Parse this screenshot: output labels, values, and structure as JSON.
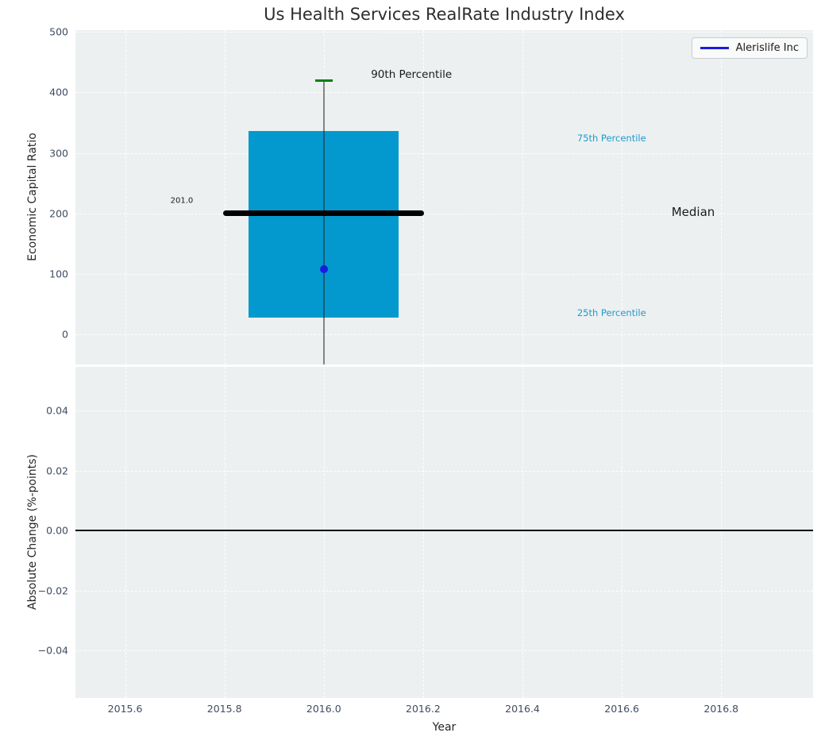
{
  "title": "Us Health Services RealRate Industry Index",
  "legend": {
    "label": "Alerislife Inc"
  },
  "colors": {
    "axes_background": "#ecf0f1",
    "grid": "#ffffff",
    "box_fill": "#0399cf",
    "median_line": "#000000",
    "whisker": "#282828",
    "p90_cap": "#008000",
    "company_point": "#1b1be0",
    "tick_label": "#3f4c63",
    "axis_label": "#262626",
    "percentile_label": "#1f9bcd",
    "zero_line": "#000000"
  },
  "chart_data": [
    {
      "type": "boxplot",
      "title": "Us Health Services RealRate Industry Index",
      "ylabel": "Economic Capital Ratio",
      "xlim": [
        2015.5,
        2016.985
      ],
      "ylim": [
        -49.5,
        503
      ],
      "grid": true,
      "legend_position": "upper right",
      "xticks": [
        2015.6,
        2015.8,
        2016.0,
        2016.2,
        2016.4,
        2016.6,
        2016.8
      ],
      "yticks": [
        0,
        100,
        200,
        300,
        400,
        500
      ],
      "ytick_labels": [
        "0",
        "100",
        "200",
        "300",
        "400",
        "500"
      ],
      "box": {
        "x": 2016.0,
        "q1": 27.5,
        "median": 201.0,
        "q3": 336,
        "p90": 419.5,
        "whisker_low_clipped": true,
        "box_halfwidth": 0.151,
        "median_halfwidth": 0.202
      },
      "point": {
        "label": "Alerislife Inc",
        "x": 2016.0,
        "y": 108
      },
      "annotations": [
        {
          "text": "90th Percentile",
          "x": 2016.095,
          "y": 429,
          "ha": "left",
          "color": "#1a1a1a",
          "size": 13.5
        },
        {
          "text": "201.0",
          "x": 2015.737,
          "y": 221,
          "ha": "right",
          "color": "#1a1a1a",
          "size": 10
        },
        {
          "text": "Median",
          "x": 2016.7,
          "y": 202,
          "ha": "left",
          "color": "#1a1a1a",
          "size": 15
        },
        {
          "text": "75th Percentile",
          "x": 2016.51,
          "y": 325,
          "ha": "left",
          "color": "#1f9bcd",
          "size": 11.5
        },
        {
          "text": "25th Percentile",
          "x": 2016.51,
          "y": 36,
          "ha": "left",
          "color": "#1f9bcd",
          "size": 11.5
        }
      ]
    },
    {
      "type": "line",
      "ylabel": "Absolute Change (%-points)",
      "xlabel": "Year",
      "xlim": [
        2015.5,
        2016.985
      ],
      "ylim": [
        -0.0559,
        0.0546
      ],
      "grid": true,
      "zero_line": 0.0,
      "xticks": [
        2015.6,
        2015.8,
        2016.0,
        2016.2,
        2016.4,
        2016.6,
        2016.8
      ],
      "xtick_labels": [
        "2015.6",
        "2015.8",
        "2016.0",
        "2016.2",
        "2016.4",
        "2016.6",
        "2016.8"
      ],
      "yticks": [
        -0.04,
        -0.02,
        0.0,
        0.02,
        0.04
      ],
      "ytick_labels": [
        "−0.04",
        "−0.02",
        "0.00",
        "0.02",
        "0.04"
      ]
    }
  ]
}
